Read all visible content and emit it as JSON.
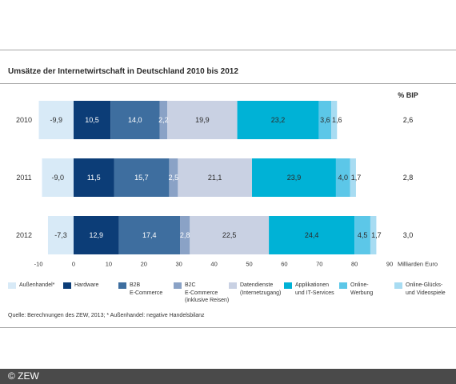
{
  "footer": {
    "copyright": "© ZEW"
  },
  "source": "Quelle: Berechnungen des ZEW, 2013; * Außenhandel: negative Handelsbilanz",
  "chart_data": {
    "type": "bar",
    "orientation": "horizontal",
    "stacked": true,
    "title": "Umsätze der Internetwirtschaft in Deutschland 2010 bis 2012",
    "xlabel": "Milliarden Euro",
    "xlim": [
      -10,
      90
    ],
    "xticks": [
      -10,
      0,
      10,
      20,
      30,
      40,
      50,
      60,
      70,
      80,
      90
    ],
    "grid": false,
    "legend_position": "bottom",
    "categories": [
      "2010",
      "2011",
      "2012"
    ],
    "series": [
      {
        "name": "Außenhandel*",
        "values": [
          -9.9,
          -9.0,
          -7.3
        ],
        "color": "#d8eaf7",
        "label_color": "#2b2b2b"
      },
      {
        "name": "Hardware",
        "values": [
          10.5,
          11.5,
          12.9
        ],
        "color": "#0c3d77",
        "label_color": "#ffffff"
      },
      {
        "name": "B2B\nE-Commerce",
        "values": [
          14.0,
          15.7,
          17.4
        ],
        "color": "#3e6e9f",
        "label_color": "#ffffff"
      },
      {
        "name": "B2C\nE-Commerce\n(inklusive Reisen)",
        "values": [
          2.2,
          2.5,
          2.8
        ],
        "color": "#8aa2c6",
        "label_color": "#ffffff"
      },
      {
        "name": "Datendienste\n(Internetzugang)",
        "values": [
          19.9,
          21.1,
          22.5
        ],
        "color": "#c9d1e3",
        "label_color": "#2b2b2b"
      },
      {
        "name": "Applikationen\nund IT-Services",
        "values": [
          23.2,
          23.9,
          24.4
        ],
        "color": "#00b2d6",
        "label_color": "#2b2b2b"
      },
      {
        "name": "Online-\nWerbung",
        "values": [
          3.6,
          4.0,
          4.5
        ],
        "color": "#5cc7e8",
        "label_color": "#2b2b2b"
      },
      {
        "name": "Online-Glücks-\nund Videospiele",
        "values": [
          1.6,
          1.7,
          1.7
        ],
        "color": "#a8dcf2",
        "label_color": "#2b2b2b"
      }
    ],
    "bip": {
      "header": "% BIP",
      "values": [
        2.6,
        2.8,
        3.0
      ]
    }
  }
}
